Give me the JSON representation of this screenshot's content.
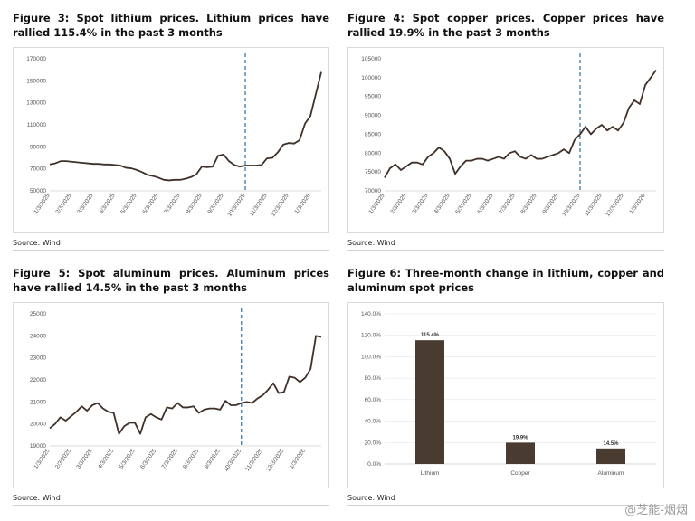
{
  "chart_data": [
    {
      "type": "line",
      "title": "Figure 3: Spot lithium prices. Lithium prices have rallied 115.4% in the past 3 months",
      "source": "Source: Wind",
      "categories": [
        "1/3/2025",
        null,
        null,
        null,
        "2/3/2025",
        null,
        null,
        null,
        "3/3/2025",
        null,
        null,
        null,
        "4/3/2025",
        null,
        null,
        null,
        "5/3/2025",
        null,
        null,
        null,
        "6/3/2025",
        null,
        null,
        null,
        "7/3/2025",
        null,
        null,
        null,
        "8/3/2025",
        null,
        null,
        null,
        "9/3/2025",
        null,
        null,
        null,
        "10/3/2025",
        null,
        null,
        null,
        "11/3/2025",
        null,
        null,
        null,
        "12/3/2025",
        null,
        null,
        null,
        "1/3/2026",
        null,
        null
      ],
      "series": [
        {
          "name": "Lithium",
          "color": "#3f3029",
          "values": [
            74000,
            75000,
            77000,
            77000,
            76500,
            76000,
            75500,
            75000,
            74500,
            74500,
            74000,
            74000,
            73500,
            73000,
            71000,
            70500,
            69000,
            67000,
            64500,
            63500,
            62000,
            60000,
            59500,
            60000,
            60000,
            61000,
            62500,
            65000,
            72000,
            71500,
            72000,
            82000,
            83000,
            77000,
            73500,
            72000,
            73000,
            73000,
            73000,
            73500,
            79500,
            80000,
            85000,
            92000,
            93500,
            93000,
            96000,
            111000,
            118000,
            138000,
            158000
          ]
        }
      ],
      "ylim": [
        50000,
        170000
      ],
      "yticks": [
        50000,
        70000,
        90000,
        110000,
        130000,
        150000,
        170000
      ],
      "vline": "10/3/2025"
    },
    {
      "type": "line",
      "title": "Figure 4: Spot copper prices. Copper prices have rallied 19.9% in the past 3 months",
      "source": "Source: Wind",
      "categories": [
        "1/3/2025",
        null,
        null,
        null,
        "2/3/2025",
        null,
        null,
        null,
        "3/3/2025",
        null,
        null,
        null,
        "4/3/2025",
        null,
        null,
        null,
        "5/3/2025",
        null,
        null,
        null,
        "6/3/2025",
        null,
        null,
        null,
        "7/3/2025",
        null,
        null,
        null,
        "8/3/2025",
        null,
        null,
        null,
        "9/3/2025",
        null,
        null,
        null,
        "10/3/2025",
        null,
        null,
        null,
        "11/3/2025",
        null,
        null,
        null,
        "12/3/2025",
        null,
        null,
        null,
        "1/3/2026",
        null,
        null
      ],
      "series": [
        {
          "name": "Copper",
          "color": "#3f3029",
          "values": [
            73500,
            76000,
            77000,
            75500,
            76500,
            77500,
            77500,
            77000,
            79000,
            80000,
            81500,
            80500,
            78500,
            74500,
            76500,
            78000,
            78000,
            78500,
            78500,
            78000,
            78500,
            79000,
            78500,
            80000,
            80500,
            79000,
            78500,
            79500,
            78500,
            78500,
            79000,
            79500,
            80000,
            81000,
            80000,
            83500,
            85000,
            87000,
            85000,
            86500,
            87500,
            86000,
            87000,
            86000,
            88000,
            92000,
            94000,
            93000,
            98000,
            100000,
            102000
          ]
        }
      ],
      "ylim": [
        70000,
        105000
      ],
      "yticks": [
        70000,
        75000,
        80000,
        85000,
        90000,
        95000,
        100000,
        105000
      ],
      "vline": "10/3/2025"
    },
    {
      "type": "line",
      "title": "Figure 5: Spot aluminum prices. Aluminum prices have rallied 14.5% in the past 3 months",
      "source": "Source: Wind",
      "categories": [
        "1/3/2025",
        null,
        null,
        null,
        "2/3/2025",
        null,
        null,
        null,
        "3/3/2025",
        null,
        null,
        null,
        "4/3/2025",
        null,
        null,
        null,
        "5/3/2025",
        null,
        null,
        null,
        "6/3/2025",
        null,
        null,
        null,
        "7/3/2025",
        null,
        null,
        null,
        "8/3/2025",
        null,
        null,
        null,
        "9/3/2025",
        null,
        null,
        null,
        "10/3/2025",
        null,
        null,
        null,
        "11/3/2025",
        null,
        null,
        null,
        "12/3/2025",
        null,
        null,
        null,
        "1/3/2026",
        null,
        null,
        null
      ],
      "series": [
        {
          "name": "Aluminum",
          "color": "#3f3029",
          "values": [
            19800,
            20000,
            20300,
            20150,
            20350,
            20550,
            20800,
            20600,
            20850,
            20950,
            20700,
            20550,
            20500,
            19550,
            19900,
            20050,
            20050,
            19550,
            20300,
            20450,
            20300,
            20200,
            20750,
            20700,
            20950,
            20750,
            20750,
            20800,
            20500,
            20650,
            20700,
            20700,
            20650,
            21050,
            20850,
            20850,
            20950,
            21000,
            20950,
            21150,
            21300,
            21550,
            21850,
            21400,
            21450,
            22150,
            22100,
            21900,
            22100,
            22500,
            24000,
            23950
          ]
        }
      ],
      "ylim": [
        19000,
        25000
      ],
      "yticks": [
        19000,
        20000,
        21000,
        22000,
        23000,
        24000,
        25000
      ],
      "vline": "10/3/2025"
    },
    {
      "type": "bar",
      "title": "Figure 6: Three-month change in lithium, copper and aluminum spot prices",
      "source": "Source: Wind",
      "categories": [
        "Lithium",
        "Copper",
        "Aluminum"
      ],
      "values": [
        115.4,
        19.9,
        14.5
      ],
      "value_labels": [
        "115.4%",
        "19.9%",
        "14.5%"
      ],
      "color": "#4a3b30",
      "ylim": [
        0,
        140
      ],
      "yticks": [
        {
          "value": 0,
          "label": "0.0%"
        },
        {
          "value": 20,
          "label": "20.0%"
        },
        {
          "value": 40,
          "label": "40.0%"
        },
        {
          "value": 60,
          "label": "60.0%"
        },
        {
          "value": 80,
          "label": "80.0%"
        },
        {
          "value": 100,
          "label": "100.0%"
        },
        {
          "value": 120,
          "label": "120.0%"
        },
        {
          "value": 140,
          "label": "140.0%"
        }
      ]
    }
  ],
  "watermark": "@芝能-烟烟"
}
